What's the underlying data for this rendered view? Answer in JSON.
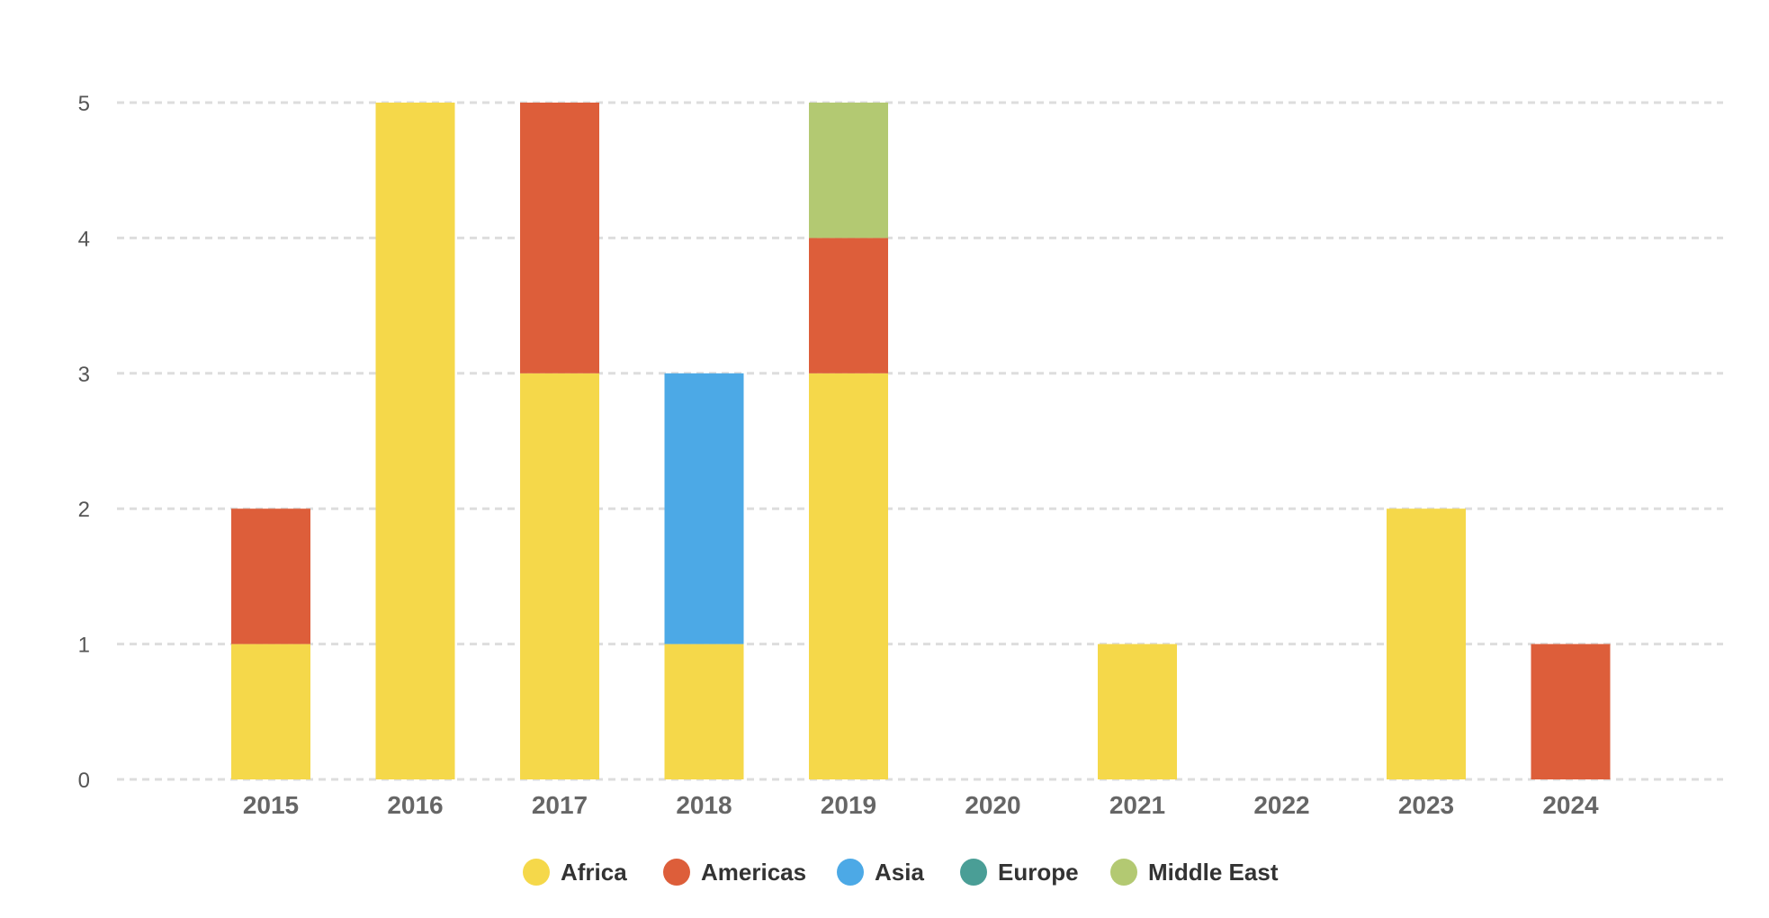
{
  "chart_data": {
    "type": "bar",
    "stacked": true,
    "categories": [
      "2015",
      "2016",
      "2017",
      "2018",
      "2019",
      "2020",
      "2021",
      "2022",
      "2023",
      "2024"
    ],
    "series": [
      {
        "name": "Africa",
        "color": "#F5D84A",
        "values": [
          1,
          5,
          3,
          1,
          3,
          0,
          1,
          0,
          2,
          0
        ]
      },
      {
        "name": "Americas",
        "color": "#DD5E3A",
        "values": [
          1,
          0,
          2,
          0,
          1,
          0,
          0,
          0,
          0,
          1
        ]
      },
      {
        "name": "Asia",
        "color": "#4CA9E6",
        "values": [
          0,
          0,
          0,
          2,
          0,
          0,
          0,
          0,
          0,
          0
        ]
      },
      {
        "name": "Europe",
        "color": "#4A9E96",
        "values": [
          0,
          0,
          0,
          0,
          0,
          0,
          0,
          0,
          0,
          0
        ]
      },
      {
        "name": "Middle East",
        "color": "#B3C972",
        "values": [
          0,
          0,
          0,
          0,
          1,
          0,
          0,
          0,
          0,
          0
        ]
      }
    ],
    "y_ticks": [
      "0",
      "1",
      "2",
      "3",
      "4",
      "5"
    ],
    "ylim": [
      0,
      5
    ],
    "grid": true,
    "grid_style": "dashed",
    "legend_position": "bottom-center",
    "title": "",
    "xlabel": "",
    "ylabel": ""
  }
}
